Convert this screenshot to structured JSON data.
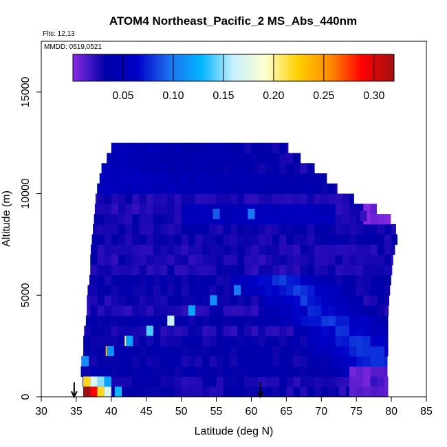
{
  "chart_data": {
    "type": "heatmap",
    "title": "ATOM4 Northeast_Pacific_2 MS_Abs_440nm",
    "flights_label": "Flts: 12,13",
    "dates_label": "MMDD: 0519,0521",
    "xlabel": "Latitude (deg N)",
    "ylabel": "Altitude (m)",
    "xlim": [
      30,
      85
    ],
    "ylim": [
      0,
      17500
    ],
    "x_ticks": [
      30,
      35,
      40,
      45,
      50,
      55,
      60,
      65,
      70,
      75,
      80,
      85
    ],
    "y_ticks": [
      0,
      5000,
      10000,
      15000
    ],
    "colorbar": {
      "range": [
        0,
        0.32
      ],
      "ticks": [
        0.05,
        0.1,
        0.15,
        0.2,
        0.25,
        0.3
      ],
      "tick_labels": [
        "0.05",
        "0.10",
        "0.15",
        "0.20",
        "0.25",
        "0.30"
      ],
      "colors": [
        "#8a2be2",
        "#0000a8",
        "#0000c8",
        "#1e6ef0",
        "#00b4ff",
        "#c8f0ff",
        "#ffffd0",
        "#ffd000",
        "#ff8c00",
        "#ff0000",
        "#a01010"
      ]
    },
    "flight_markers_latitude": [
      34.7,
      61.3
    ],
    "profile_envelope": [
      {
        "alt": 0,
        "lat_min": 36.0,
        "lat_max": 79.5
      },
      {
        "alt": 500,
        "lat_min": 36.0,
        "lat_max": 79.5
      },
      {
        "alt": 1000,
        "lat_min": 35.8,
        "lat_max": 79.5
      },
      {
        "alt": 1500,
        "lat_min": 35.5,
        "lat_max": 79.3
      },
      {
        "alt": 2000,
        "lat_min": 36.0,
        "lat_max": 79.5
      },
      {
        "alt": 3000,
        "lat_min": 36.0,
        "lat_max": 79.5
      },
      {
        "alt": 4000,
        "lat_min": 36.5,
        "lat_max": 79.5
      },
      {
        "alt": 5000,
        "lat_min": 36.5,
        "lat_max": 79.7
      },
      {
        "alt": 6000,
        "lat_min": 37.0,
        "lat_max": 80.0
      },
      {
        "alt": 7000,
        "lat_min": 37.0,
        "lat_max": 80.3
      },
      {
        "alt": 8000,
        "lat_min": 37.3,
        "lat_max": 81.0
      },
      {
        "alt": 9000,
        "lat_min": 37.6,
        "lat_max": 79.5
      },
      {
        "alt": 10000,
        "lat_min": 37.8,
        "lat_max": 73.0
      },
      {
        "alt": 11000,
        "lat_min": 38.5,
        "lat_max": 70.0
      },
      {
        "alt": 11500,
        "lat_min": 38.7,
        "lat_max": 68.0
      },
      {
        "alt": 12000,
        "lat_min": 40.0,
        "lat_max": 66.0
      },
      {
        "alt": 12500,
        "lat_min": 40.0,
        "lat_max": 64.5
      }
    ],
    "highlights": [
      {
        "lat": 36.5,
        "alt": 250,
        "value": 0.32
      },
      {
        "lat": 37.5,
        "alt": 250,
        "value": 0.29
      },
      {
        "lat": 38.5,
        "alt": 250,
        "value": 0.22
      },
      {
        "lat": 39.5,
        "alt": 250,
        "value": 0.17
      },
      {
        "lat": 41.0,
        "alt": 250,
        "value": 0.13
      },
      {
        "lat": 36.5,
        "alt": 750,
        "value": 0.22
      },
      {
        "lat": 37.5,
        "alt": 750,
        "value": 0.17
      },
      {
        "lat": 38.5,
        "alt": 750,
        "value": 0.15
      },
      {
        "lat": 39.5,
        "alt": 750,
        "value": 0.12
      },
      {
        "lat": 36.3,
        "alt": 1750,
        "value": 0.11
      },
      {
        "lat": 39.7,
        "alt": 2250,
        "value": 0.24
      },
      {
        "lat": 39.9,
        "alt": 2250,
        "value": 0.11
      },
      {
        "lat": 42.4,
        "alt": 2750,
        "value": 0.21
      },
      {
        "lat": 42.6,
        "alt": 2750,
        "value": 0.12
      },
      {
        "lat": 45.5,
        "alt": 3250,
        "value": 0.14
      },
      {
        "lat": 48.5,
        "alt": 3750,
        "value": 0.16
      },
      {
        "lat": 51.5,
        "alt": 4250,
        "value": 0.12
      },
      {
        "lat": 54.6,
        "alt": 4750,
        "value": 0.11
      },
      {
        "lat": 58.0,
        "alt": 5250,
        "value": 0.1
      },
      {
        "lat": 55.0,
        "alt": 9000,
        "value": 0.09
      },
      {
        "lat": 60.0,
        "alt": 9000,
        "value": 0.1
      },
      {
        "lat": 76.0,
        "alt": 8900,
        "value": 0.02
      },
      {
        "lat": 73.0,
        "alt": 300,
        "value": 0.02
      },
      {
        "lat": 77.5,
        "alt": 750,
        "value": 0.02
      }
    ]
  }
}
